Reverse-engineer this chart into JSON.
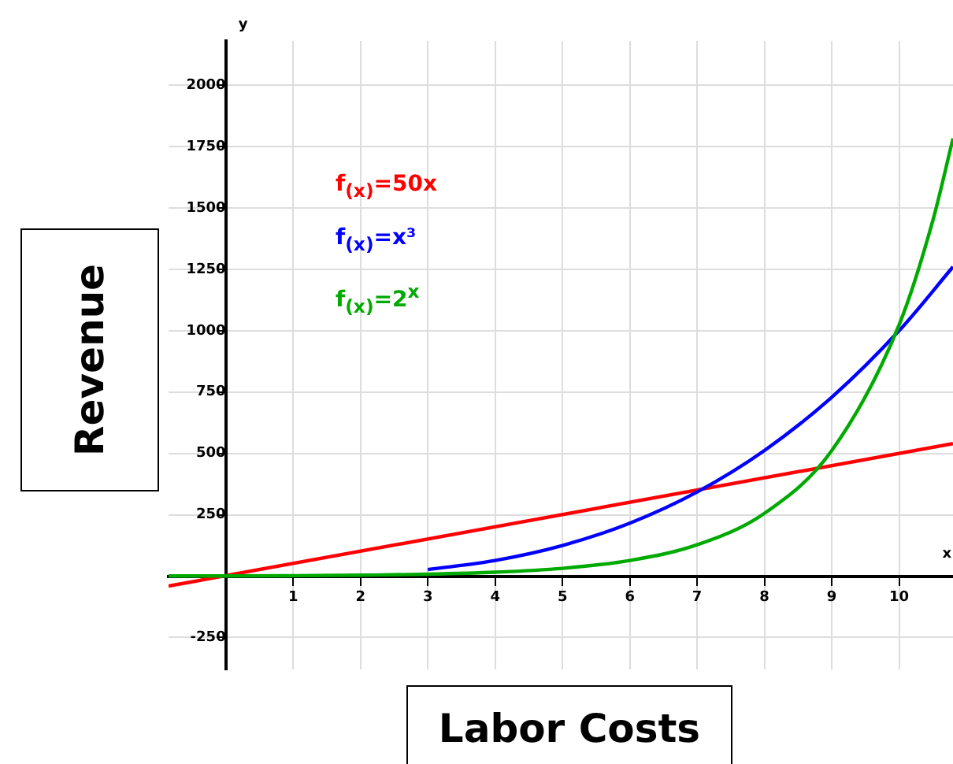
{
  "chart_data": {
    "type": "line",
    "xlabel": "Labor Costs",
    "ylabel": "Revenue",
    "annotations": [
      "y",
      "x"
    ],
    "xlim": [
      -0.85,
      10.8
    ],
    "ylim": [
      -380,
      2180
    ],
    "xticks": [
      1,
      2,
      3,
      4,
      5,
      6,
      7,
      8,
      9,
      10
    ],
    "yticks": [
      -250,
      250,
      500,
      750,
      1000,
      1250,
      1500,
      1750,
      2000
    ],
    "grid": true,
    "legend": "top left",
    "marker": "none",
    "line_style": "solid",
    "series": [
      {
        "name": "f$_{(x)}$=50x",
        "color": "#ff0000",
        "x": [
          -0.85,
          10.8
        ],
        "values": [
          -40,
          540
        ]
      },
      {
        "name": "f$_{(x)}$=x³",
        "color": "#0000ff",
        "x": [
          3,
          4,
          5,
          6,
          7,
          8,
          9,
          10,
          10.8
        ],
        "values": [
          27,
          64,
          125,
          216,
          343,
          512,
          729,
          1000,
          1260
        ]
      },
      {
        "name": "f$_{(x)}$=2$^{x}$",
        "color": "#00aa00",
        "x": [
          -0.85,
          0,
          1,
          2,
          3,
          4,
          5,
          6,
          7,
          8,
          9,
          10,
          10.5,
          10.8
        ],
        "values": [
          1,
          1,
          2,
          4,
          8,
          16,
          32,
          64,
          128,
          256,
          512,
          1024,
          1448,
          1783
        ]
      }
    ]
  }
}
